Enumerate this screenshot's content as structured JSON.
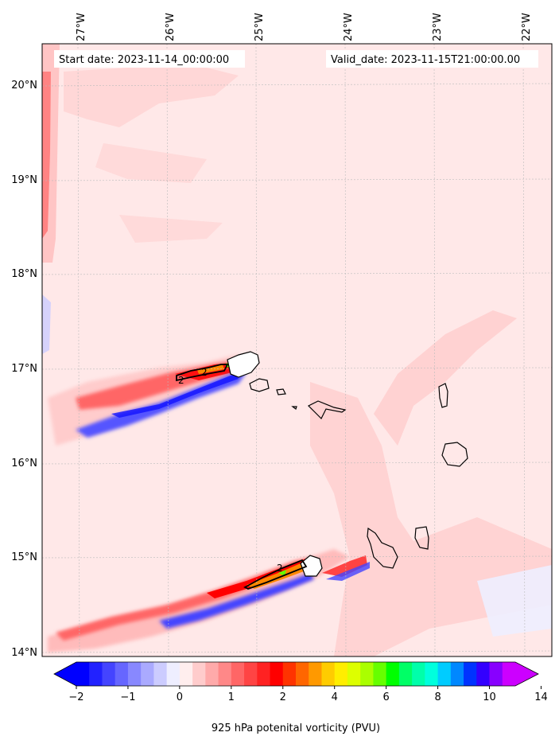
{
  "header": {
    "start_label": "Start date: 2023-11-14_00:00:00",
    "valid_label": "Valid_date: 2023-11-15T21:00:00.00"
  },
  "map": {
    "lon_ticks": [
      "27°W",
      "26°W",
      "25°W",
      "24°W",
      "23°W",
      "22°W"
    ],
    "lat_ticks": [
      "20°N",
      "19°N",
      "18°N",
      "17°N",
      "16°N",
      "15°N",
      "14°N"
    ],
    "contour_labels": [
      "2",
      "2",
      "2"
    ]
  },
  "colorbar": {
    "label": "925 hPa potenital vorticity (PVU)",
    "tick_labels": [
      "−2",
      "−1",
      "0",
      "1",
      "2",
      "4",
      "6",
      "8",
      "10",
      "14"
    ],
    "colors": [
      "#0000ff",
      "#2222ff",
      "#4444ff",
      "#6666ff",
      "#8888ff",
      "#aaaaff",
      "#ccccff",
      "#eeeeff",
      "#ffeeee",
      "#ffcccc",
      "#ffaaaa",
      "#ff8888",
      "#ff6666",
      "#ff4444",
      "#ff2222",
      "#ff0000",
      "#ff3300",
      "#ff6600",
      "#ff9900",
      "#ffcc00",
      "#ffee00",
      "#ddff00",
      "#aaff00",
      "#66ff00",
      "#00ff00",
      "#00ff66",
      "#00ffaa",
      "#00ffdd",
      "#00ccff",
      "#0088ff",
      "#0033ff",
      "#3300ff",
      "#8800ff",
      "#cc00ff"
    ],
    "under_color": "#0000ff",
    "over_color": "#cc00ff"
  },
  "colors": {
    "background": "#ffe8e8",
    "pv_positive_light": "#ffcccc",
    "pv_positive": "#ff8888",
    "pv_strong": "#ff0000",
    "pv_negative_light": "#eeeeff",
    "pv_negative": "#3333ff",
    "land_outline": "#000000"
  }
}
